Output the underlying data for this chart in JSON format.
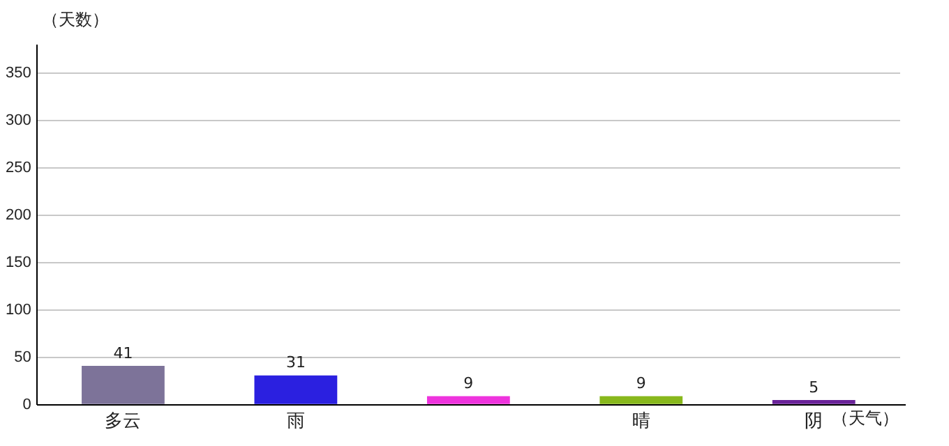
{
  "chart_data": {
    "type": "bar",
    "xlabel": "（天气）",
    "ylabel": "（天数）",
    "categories": [
      "多云",
      "雨",
      null,
      "晴",
      "阴"
    ],
    "values": [
      41,
      31,
      9,
      9,
      5
    ],
    "colors": [
      "#7d7399",
      "#2b20e0",
      "#ee33dd",
      "#88b81c",
      "#6a2399"
    ],
    "ylim": [
      0,
      380
    ],
    "yticks": [
      0,
      50,
      100,
      150,
      200,
      250,
      300,
      350
    ],
    "grid": "y",
    "data_labels": true,
    "legend": false
  }
}
